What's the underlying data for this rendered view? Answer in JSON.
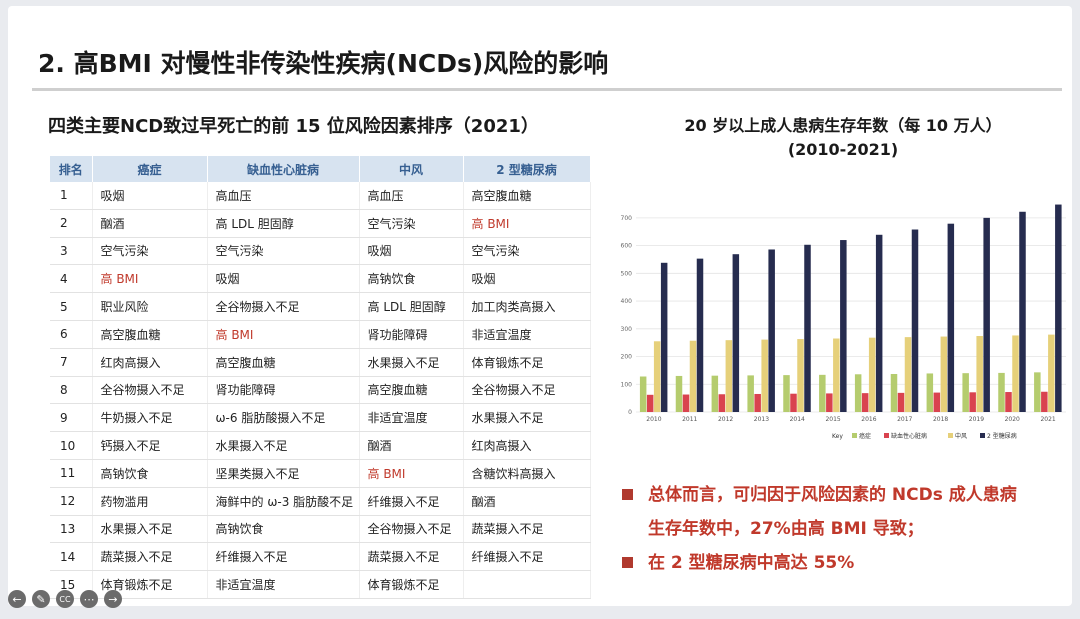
{
  "slide": {
    "title": "2. 高BMI 对慢性非传染性疾病(NCDs)风险的影响",
    "left_heading": "四类主要NCD致过早死亡的前 15 位风险因素排序（2021）",
    "table": {
      "headers": [
        "排名",
        "癌症",
        "缺血性心脏病",
        "中风",
        "2 型糖尿病"
      ],
      "rows": [
        [
          "1",
          "吸烟",
          "高血压",
          "高血压",
          "高空腹血糖"
        ],
        [
          "2",
          "酗酒",
          "高 LDL 胆固醇",
          "空气污染",
          "高 BMI"
        ],
        [
          "3",
          "空气污染",
          "空气污染",
          "吸烟",
          "空气污染"
        ],
        [
          "4",
          "高 BMI",
          "吸烟",
          "高钠饮食",
          "吸烟"
        ],
        [
          "5",
          "职业风险",
          "全谷物摄入不足",
          "高 LDL 胆固醇",
          "加工肉类高摄入"
        ],
        [
          "6",
          "高空腹血糖",
          "高 BMI",
          "肾功能障碍",
          "非适宜温度"
        ],
        [
          "7",
          "红肉高摄入",
          "高空腹血糖",
          "水果摄入不足",
          "体育锻炼不足"
        ],
        [
          "8",
          "全谷物摄入不足",
          "肾功能障碍",
          "高空腹血糖",
          "全谷物摄入不足"
        ],
        [
          "9",
          "牛奶摄入不足",
          "ω-6 脂肪酸摄入不足",
          "非适宜温度",
          "水果摄入不足"
        ],
        [
          "10",
          "钙摄入不足",
          "水果摄入不足",
          "酗酒",
          "红肉高摄入"
        ],
        [
          "11",
          "高钠饮食",
          "坚果类摄入不足",
          "高 BMI",
          "含糖饮料高摄入"
        ],
        [
          "12",
          "药物滥用",
          "海鲜中的 ω-3 脂肪酸不足",
          "纤维摄入不足",
          "酗酒"
        ],
        [
          "13",
          "水果摄入不足",
          "高钠饮食",
          "全谷物摄入不足",
          "蔬菜摄入不足"
        ],
        [
          "14",
          "蔬菜摄入不足",
          "纤维摄入不足",
          "蔬菜摄入不足",
          "纤维摄入不足"
        ],
        [
          "15",
          "体育锻炼不足",
          "非适宜温度",
          "体育锻炼不足",
          ""
        ]
      ],
      "highlight_text": "高 BMI",
      "highlight_color": "#c0392b"
    },
    "chart_title_line1": "20 岁以上成人患病生存年数（每 10 万人）",
    "chart_title_line2": "(2010-2021)",
    "bullets": {
      "b1_line1": "总体而言，可归因于风险因素的 NCDs 成人患病",
      "b1_line2": "生存年数中，27%由高 BMI 导致；",
      "b2": "在 2 型糖尿病中高达 55%"
    },
    "player_icons": [
      "back-arrow-icon",
      "pen-icon",
      "cc-icon",
      "more-icon",
      "forward-arrow-icon"
    ]
  },
  "chart_data": {
    "type": "bar",
    "categories": [
      "2010",
      "2011",
      "2012",
      "2013",
      "2014",
      "2015",
      "2016",
      "2017",
      "2018",
      "2019",
      "2020",
      "2021"
    ],
    "ylim": [
      0,
      750
    ],
    "yticks": [
      0,
      100,
      200,
      300,
      400,
      500,
      600,
      700
    ],
    "legend_key": "Key",
    "legend_position": "bottom",
    "grid": true,
    "series": [
      {
        "name": "癌症",
        "color": "#b5cc6e",
        "values": [
          128,
          130,
          131,
          132,
          133,
          134,
          136,
          137,
          139,
          140,
          141,
          143
        ]
      },
      {
        "name": "缺血性心脏病",
        "color": "#d9434f",
        "values": [
          62,
          63,
          64,
          65,
          66,
          67,
          68,
          69,
          70,
          71,
          72,
          73
        ]
      },
      {
        "name": "中风",
        "color": "#e6d07a",
        "values": [
          255,
          257,
          259,
          261,
          263,
          265,
          268,
          270,
          272,
          274,
          276,
          279
        ]
      },
      {
        "name": "2 型糖尿病",
        "color": "#262c4f",
        "values": [
          538,
          553,
          569,
          586,
          603,
          620,
          639,
          658,
          679,
          700,
          722,
          748
        ]
      }
    ]
  },
  "colors": {
    "accent_red": "#c0392b",
    "table_header_bg": "#d7e3f0",
    "table_header_text": "#365f91"
  }
}
